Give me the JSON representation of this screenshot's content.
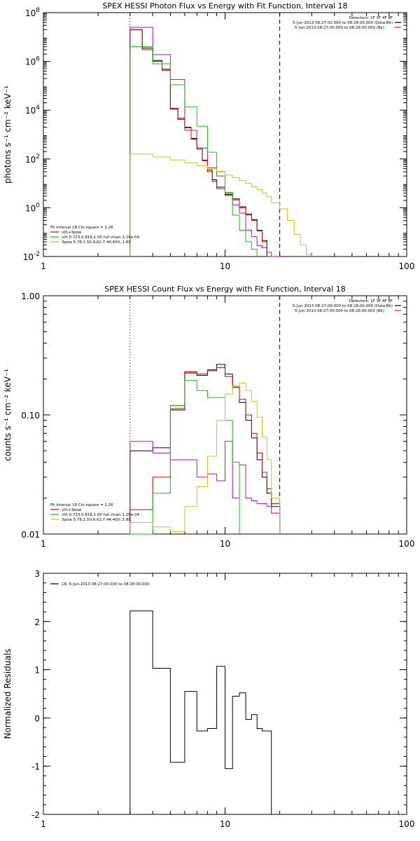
{
  "chart_data": [
    {
      "type": "line",
      "title": "SPEX HESSI Photon Flux vs Energy with Fit Function, Interval 18",
      "xlabel": "",
      "ylabel": "photons s⁻¹ cm⁻² keV⁻¹",
      "xscale": "log",
      "yscale": "log",
      "xlim": [
        1,
        100
      ],
      "ylim": [
        0.01,
        100000000
      ],
      "x_ticks": [
        {
          "v": 1,
          "label": "1"
        },
        {
          "v": 10,
          "label": "10"
        },
        {
          "v": 100,
          "label": "100"
        }
      ],
      "y_ticks": [
        {
          "v": 0.01,
          "base": "10",
          "exp": "-2"
        },
        {
          "v": 1,
          "base": "10",
          "exp": "0"
        },
        {
          "v": 100,
          "base": "10",
          "exp": "2"
        },
        {
          "v": 10000,
          "base": "10",
          "exp": "4"
        },
        {
          "v": 1000000,
          "base": "10",
          "exp": "6"
        },
        {
          "v": 100000000,
          "base": "10",
          "exp": "8"
        }
      ],
      "header": [
        "Detectors: 1F 3F 4F 8F",
        "5-Jun-2013 08:27:00.000 to 08:28:00.000 (Data-Bk)",
        "5-Jun-2013 08:27:00.000 to 08:28:00.000 (Bk)"
      ],
      "header_colors": [
        "",
        "#000000",
        "#cc00cc"
      ],
      "fit_info": [
        "Fit Interval 18   Chi-square = 1.26"
      ],
      "series": [
        {
          "name": "vth+3pow",
          "color": "#d40000"
        },
        {
          "name": "vth 0.723,0.818,1.00  full chian 1.26e-04",
          "color": "#00cc00"
        },
        {
          "name": "3pow 5.78,1.50,9.62,7.44,400.,1.80",
          "color": "#dcc000"
        }
      ],
      "vlines": [
        {
          "x": 3.0,
          "style": "dotted"
        },
        {
          "x": 20.0,
          "style": "dashed"
        }
      ],
      "data_series": [
        {
          "color": "#000000",
          "edges": [
            3,
            3.5,
            4,
            4.5,
            5,
            5.5,
            6,
            6.5,
            7,
            7.5,
            8,
            8.5,
            9,
            10,
            11,
            12,
            13,
            14,
            15,
            16,
            17,
            18,
            20
          ],
          "values": [
            20000000,
            3500000,
            1100000,
            480000,
            11000,
            4200,
            2000,
            700,
            280,
            85,
            35,
            14,
            7,
            3.5,
            2.3,
            1.1,
            0.55,
            0.33,
            0.12,
            0.045,
            0.01,
            0.007
          ]
        },
        {
          "color": "#d40000",
          "edges": [
            3,
            3.5,
            4,
            4.5,
            5,
            5.5,
            6,
            6.5,
            7,
            7.5,
            8,
            8.5,
            9,
            10,
            11,
            12,
            13,
            14,
            15,
            16,
            17,
            18,
            20
          ],
          "values": [
            20000000,
            3000000,
            1000000,
            430000,
            12000,
            4700,
            1900,
            650,
            250,
            90,
            30,
            12,
            6,
            3.2,
            2.1,
            1.0,
            0.5,
            0.3,
            0.11,
            0.04,
            0.009,
            0.006
          ]
        },
        {
          "color": "#cc00cc",
          "edges": [
            3,
            4,
            5,
            6,
            7,
            8,
            9,
            10,
            11,
            12,
            13,
            14,
            15,
            16,
            17,
            18,
            20
          ],
          "values": [
            25000000,
            1900000,
            180000,
            1500,
            280,
            44,
            20,
            3.9,
            1.3,
            0.6,
            0.12,
            0.065,
            0.028,
            0.023,
            0.015,
            0.01
          ]
        },
        {
          "color": "#00cc00",
          "edges": [
            3,
            4,
            5,
            6,
            7,
            8,
            9,
            10,
            11,
            12,
            13,
            14,
            15
          ],
          "values": [
            4000000,
            800000,
            110000,
            14000,
            2200,
            190,
            30,
            4.3,
            0.5,
            0.12,
            0.04,
            0.02
          ]
        },
        {
          "color": "#dcc000",
          "edges": [
            3,
            4,
            5,
            6,
            7,
            8,
            9,
            10,
            11,
            12,
            13,
            14,
            15,
            16,
            17,
            18,
            20,
            22,
            24,
            26,
            28,
            30
          ],
          "values": [
            160,
            120,
            92,
            70,
            53,
            40,
            31,
            22,
            17,
            13,
            10,
            7.3,
            5.5,
            4,
            2.8,
            1.6,
            0.9,
            0.3,
            0.08,
            0.03,
            0.012
          ]
        }
      ]
    },
    {
      "type": "line",
      "title": "SPEX HESSI Count Flux vs Energy with Fit Function, Interval 18",
      "xlabel": "",
      "ylabel": "counts s⁻¹ cm⁻² keV⁻¹",
      "xscale": "log",
      "yscale": "log",
      "xlim": [
        1,
        100
      ],
      "ylim": [
        0.01,
        1.0
      ],
      "x_ticks": [
        {
          "v": 1,
          "label": "1"
        },
        {
          "v": 10,
          "label": "10"
        },
        {
          "v": 100,
          "label": "100"
        }
      ],
      "y_ticks": [
        {
          "v": 0.01,
          "label": "0.01"
        },
        {
          "v": 0.1,
          "label": "0.10"
        },
        {
          "v": 1,
          "label": "1.00"
        }
      ],
      "header": [
        "Detectors: 1F 3F 4F 8F",
        "5-Jun-2013 08:27:00.000 to 08:28:00.000 (Data-Bk)",
        "5-Jun-2013 08:27:00.000 to 08:28:00.000 (Bk)"
      ],
      "header_colors": [
        "",
        "#000000",
        "#cc00cc"
      ],
      "fit_info": [
        "Fit Interval 18   Chi-square = 1.26"
      ],
      "series": [
        {
          "name": "vth+3pow",
          "color": "#d40000"
        },
        {
          "name": "vth 0.723,0.818,1.00  full chian 1.26e-04",
          "color": "#00cc00"
        },
        {
          "name": "3pow 5.78,1.50,9.62,7.44,400.,1.80",
          "color": "#dcc000"
        }
      ],
      "vlines": [
        {
          "x": 3.0,
          "style": "dotted"
        },
        {
          "x": 20.0,
          "style": "dashed"
        }
      ],
      "data_series": [
        {
          "color": "#000000",
          "edges": [
            3,
            4,
            5,
            6,
            7,
            8,
            9,
            10,
            11,
            12,
            13,
            14,
            15,
            16,
            17,
            18,
            20
          ],
          "values": [
            0.05,
            0.053,
            0.11,
            0.225,
            0.215,
            0.235,
            0.265,
            0.22,
            0.17,
            0.127,
            0.09,
            0.064,
            0.042,
            0.03,
            0.022,
            0.017
          ]
        },
        {
          "color": "#d40000",
          "edges": [
            3,
            4,
            5,
            6,
            7,
            8,
            9,
            10,
            11,
            12,
            13,
            14,
            15,
            16,
            17,
            18,
            20
          ],
          "values": [
            0.016,
            0.03,
            0.113,
            0.23,
            0.22,
            0.24,
            0.25,
            0.21,
            0.175,
            0.135,
            0.1,
            0.07,
            0.048,
            0.033,
            0.024,
            0.018
          ]
        },
        {
          "color": "#cc00cc",
          "edges": [
            3,
            4,
            5,
            6,
            7,
            8,
            9,
            10,
            11,
            12,
            13,
            14,
            15,
            16,
            17,
            18,
            20
          ],
          "values": [
            0.06,
            0.048,
            0.042,
            0.042,
            0.03,
            0.032,
            0.028,
            0.06,
            0.02,
            0.038,
            0.02,
            0.019,
            0.018,
            0.018,
            0.017,
            0.015
          ]
        },
        {
          "color": "#00cc00",
          "edges": [
            3,
            4,
            5,
            6,
            7,
            8,
            9,
            10,
            11,
            12
          ],
          "values": [
            0.009,
            0.022,
            0.12,
            0.195,
            0.16,
            0.14,
            0.14,
            0.09,
            0.04
          ]
        },
        {
          "color": "#dcc000",
          "edges": [
            3,
            4,
            5,
            6,
            7,
            8,
            9,
            10,
            11,
            12,
            13,
            14,
            15,
            16,
            17,
            18,
            20
          ],
          "values": [
            0.0125,
            0.0115,
            0.0105,
            0.017,
            0.025,
            0.045,
            0.09,
            0.15,
            0.175,
            0.185,
            0.16,
            0.13,
            0.095,
            0.065,
            0.042,
            0.02
          ]
        }
      ]
    },
    {
      "type": "line",
      "title": "",
      "xlabel": "",
      "ylabel": "Normalized Residuals",
      "xscale": "log",
      "yscale": "linear",
      "xlim": [
        1,
        100
      ],
      "ylim": [
        -2,
        3
      ],
      "x_ticks": [
        {
          "v": 1,
          "label": "1"
        },
        {
          "v": 10,
          "label": "10"
        },
        {
          "v": 100,
          "label": "100"
        }
      ],
      "y_ticks": [
        {
          "v": -2,
          "label": "-2"
        },
        {
          "v": -1,
          "label": "-1"
        },
        {
          "v": 0,
          "label": "0"
        },
        {
          "v": 1,
          "label": "1"
        },
        {
          "v": 2,
          "label": "2"
        },
        {
          "v": 3,
          "label": "3"
        }
      ],
      "series": [
        {
          "name": "18,  5-Jun-2013 08:27:00.000 to 08:28:00.000",
          "color": "#000000"
        }
      ],
      "data_series": [
        {
          "color": "#000000",
          "edges": [
            3,
            4,
            5,
            6,
            7,
            8,
            9,
            10,
            11,
            12,
            13,
            14,
            15,
            16,
            17,
            18,
            20
          ],
          "values": [
            2.22,
            1.03,
            -0.92,
            0.55,
            -0.27,
            -0.22,
            1.07,
            -1.05,
            0.45,
            0.52,
            -0.03,
            0.07,
            -0.22,
            -0.27,
            -0.27,
            -2.0
          ]
        }
      ]
    }
  ]
}
